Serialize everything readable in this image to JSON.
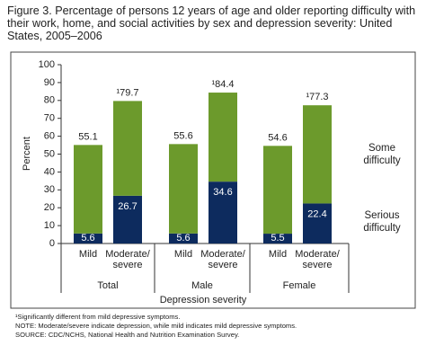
{
  "chart_data": {
    "type": "bar",
    "title": "Figure 3.  Percentage of persons 12 years of age and older reporting difficulty with their work, home, and social activities by sex and depression severity: United States, 2005–2006",
    "y_label": "Percent",
    "x_label": "Depression severity",
    "groups": [
      "Total",
      "Male",
      "Female"
    ],
    "categories": [
      "Mild",
      "Moderate/ severe",
      "Mild",
      "Moderate/ severe",
      "Mild",
      "Moderate/ severe"
    ],
    "series": [
      {
        "name": "Serious difficulty",
        "color": "#0d2b5e",
        "values": [
          5.6,
          26.7,
          5.6,
          34.6,
          5.5,
          22.4
        ]
      },
      {
        "name": "Some difficulty",
        "color": "#6c9a2c",
        "values": [
          49.5,
          53.0,
          50.0,
          49.8,
          49.1,
          54.9
        ]
      }
    ],
    "totals": {
      "values": [
        55.1,
        79.7,
        55.6,
        84.4,
        54.6,
        77.3
      ],
      "value_labels": [
        "55.1",
        "¹79.7",
        "55.6",
        "¹84.4",
        "54.6",
        "¹77.3"
      ]
    },
    "ylim": [
      0,
      100
    ],
    "yticks": [
      0,
      10,
      20,
      30,
      40,
      50,
      60,
      70,
      80,
      90,
      100
    ],
    "notes": [
      "¹Significantly different from mild depressive symptoms.",
      "NOTE:  Moderate/severe indicate depression, while mild indicates mild depressive symptoms.",
      "SOURCE:  CDC/NCHS, National Health and Nutrition Examination Survey."
    ]
  }
}
